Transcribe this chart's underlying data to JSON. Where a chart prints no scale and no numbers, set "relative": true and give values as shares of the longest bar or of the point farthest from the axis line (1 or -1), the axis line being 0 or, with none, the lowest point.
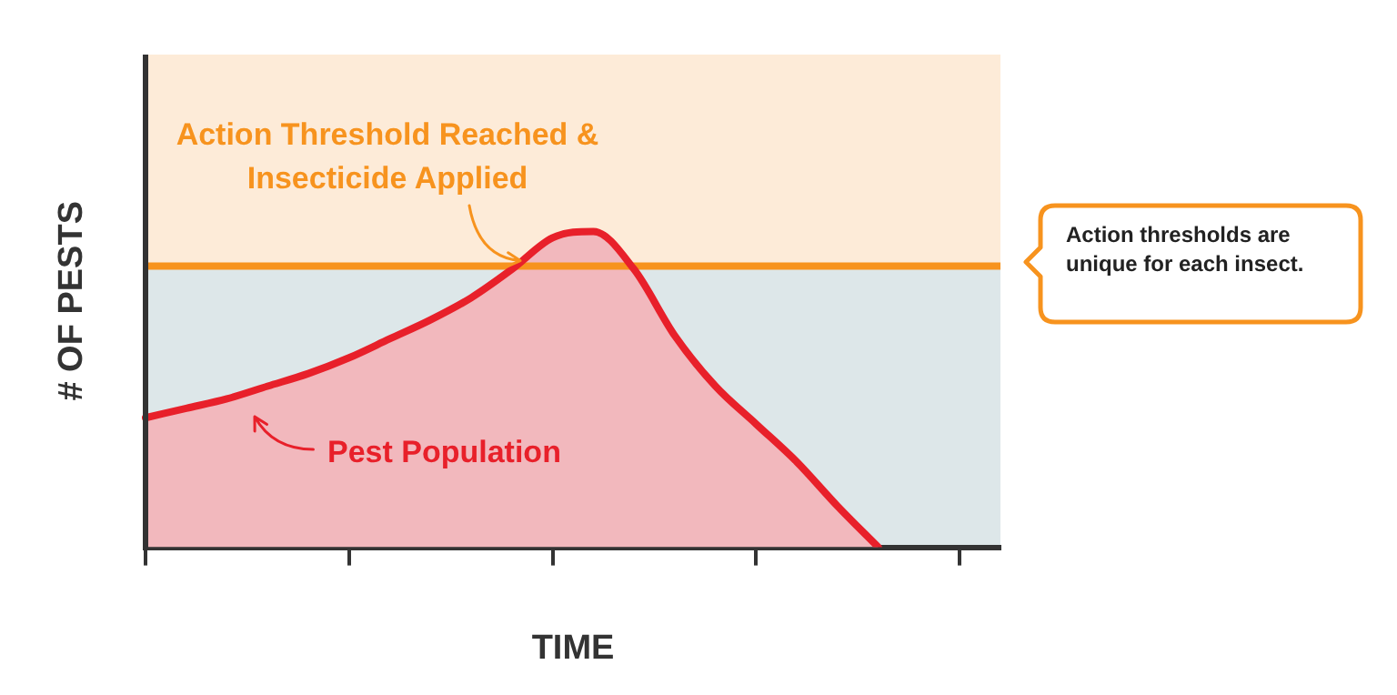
{
  "chart_data": {
    "type": "area",
    "relative": true,
    "xlabel": "TIME",
    "ylabel": "# OF PESTS",
    "categories": [
      null,
      null,
      null,
      null,
      null,
      null,
      null,
      null,
      null,
      null,
      null,
      null,
      null,
      null,
      null,
      null,
      null,
      null,
      null,
      null,
      null,
      null
    ],
    "series": [
      {
        "name": "Pest Population",
        "color": "#e8202a",
        "values": [
          0.41,
          0.44,
          0.47,
          0.51,
          0.55,
          0.6,
          0.66,
          0.72,
          0.79,
          0.88,
          0.98,
          1,
          0.88,
          0.67,
          0.51,
          0.39,
          0.27,
          0.13,
          0,
          null,
          null,
          null
        ]
      }
    ],
    "ref_lines": [
      {
        "axis": "y",
        "value": 0.89,
        "color": "#f7931e"
      }
    ],
    "bands": [
      {
        "axis": "y",
        "from": 0,
        "to": 0.89,
        "color": "#dde7e9"
      },
      {
        "axis": "y",
        "from": 0.89,
        "to": 1.56,
        "color": "#fdebd8"
      }
    ],
    "annotations": [
      "Action Threshold Reached & Insecticide Applied",
      "Action thresholds are unique for each insect."
    ],
    "marker": "none",
    "line_style": "solid",
    "grid": false
  }
}
